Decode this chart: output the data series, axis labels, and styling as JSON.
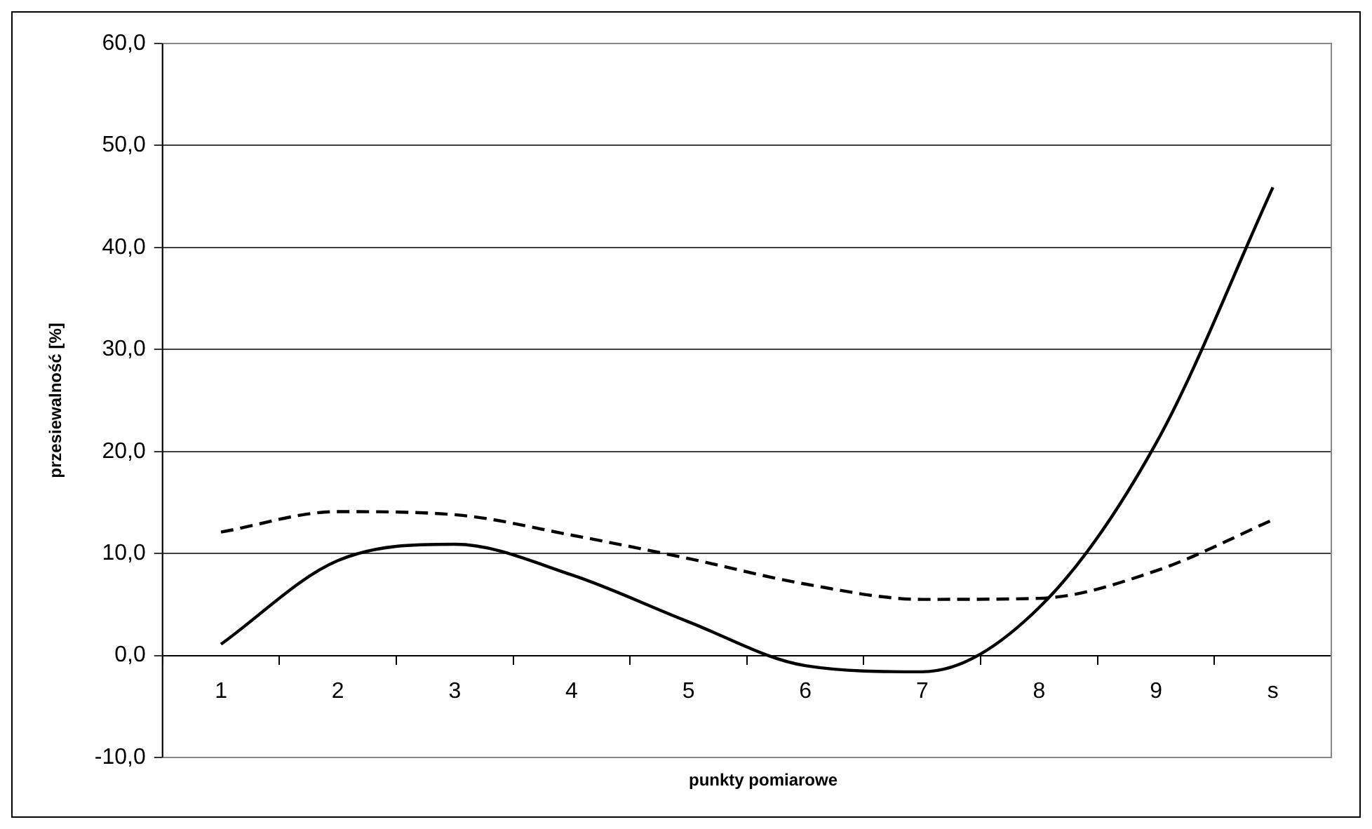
{
  "chart_data": {
    "type": "line",
    "xlabel": "punkty pomiarowe",
    "ylabel": "przesiewalność [%]",
    "categories": [
      "1",
      "2",
      "3",
      "4",
      "5",
      "6",
      "7",
      "8",
      "9",
      "s"
    ],
    "series": [
      {
        "color": "#000000",
        "line_style": "solid",
        "values": [
          1.1,
          9.3,
          10.9,
          7.9,
          3.3,
          -1.0,
          -1.6,
          4.7,
          20.8,
          45.9
        ]
      },
      {
        "color": "#000000",
        "line_style": "dashed",
        "values": [
          12.1,
          14.1,
          13.8,
          11.8,
          9.5,
          7.0,
          5.5,
          5.6,
          8.3,
          13.3
        ]
      }
    ],
    "ylim": [
      -10,
      60
    ],
    "yticks": [
      {
        "value": -10,
        "label": "-10,0"
      },
      {
        "value": 0,
        "label": "0,0"
      },
      {
        "value": 10,
        "label": "10,0"
      },
      {
        "value": 20,
        "label": "20,0"
      },
      {
        "value": 30,
        "label": "30,0"
      },
      {
        "value": 40,
        "label": "40,0"
      },
      {
        "value": 50,
        "label": "50,0"
      },
      {
        "value": 60,
        "label": "60,0"
      }
    ],
    "grid": "y",
    "legend": false,
    "marker": "none"
  }
}
